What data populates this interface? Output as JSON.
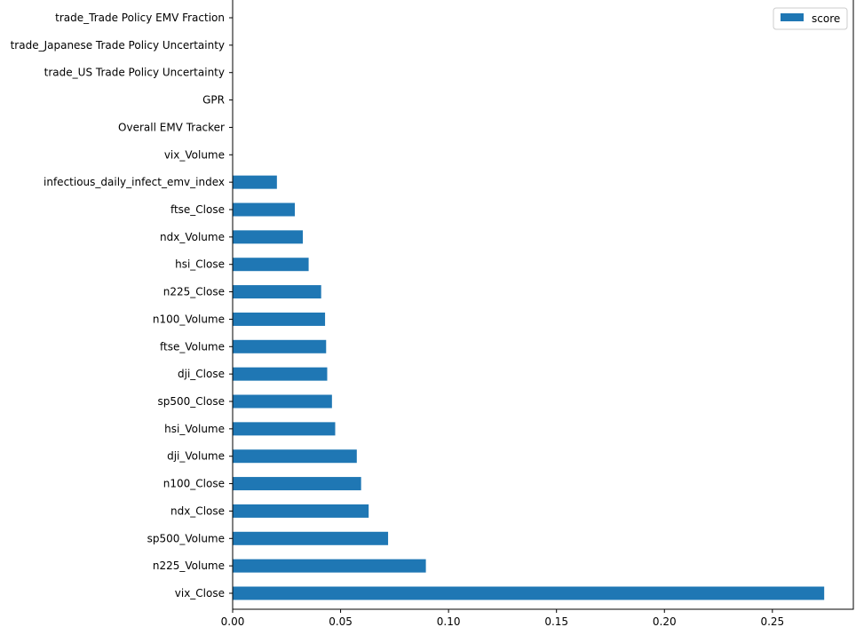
{
  "chart_data": {
    "type": "bar",
    "orientation": "horizontal",
    "title": "",
    "xlabel": "",
    "ylabel": "",
    "xlim": [
      0.0,
      0.2875
    ],
    "xticks": [
      0.0,
      0.05,
      0.1,
      0.15,
      0.2,
      0.25
    ],
    "xtick_labels": [
      "0.00",
      "0.05",
      "0.10",
      "0.15",
      "0.20",
      "0.25"
    ],
    "grid": false,
    "legend_position": "top-right",
    "categories": [
      "vix_Close",
      "n225_Volume",
      "sp500_Volume",
      "ndx_Close",
      "n100_Close",
      "dji_Volume",
      "hsi_Volume",
      "sp500_Close",
      "dji_Close",
      "ftse_Volume",
      "n100_Volume",
      "n225_Close",
      "hsi_Close",
      "ndx_Volume",
      "ftse_Close",
      "infectious_daily_infect_emv_index",
      "vix_Volume",
      "Overall EMV Tracker",
      "GPR",
      "trade_US Trade Policy Uncertainty",
      "trade_Japanese Trade Policy Uncertainty",
      "trade_Trade Policy EMV Fraction"
    ],
    "series": [
      {
        "name": "score",
        "color": "#1f77b4",
        "values": [
          0.274,
          0.0895,
          0.072,
          0.063,
          0.0595,
          0.0575,
          0.0475,
          0.046,
          0.0438,
          0.0433,
          0.0428,
          0.041,
          0.0352,
          0.0325,
          0.0288,
          0.0205,
          0.0,
          0.0,
          0.0,
          0.0,
          0.0,
          0.0
        ]
      }
    ]
  }
}
